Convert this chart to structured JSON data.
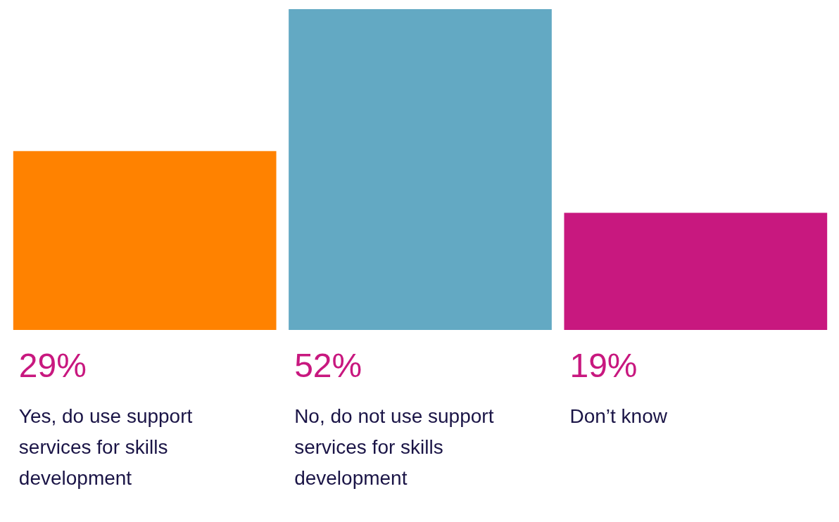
{
  "chart_data": {
    "type": "bar",
    "categories": [
      "Yes, do use support services for skills development",
      "No, do not use support services for skills development",
      "Don’t know"
    ],
    "values": [
      29,
      52,
      19
    ],
    "colors": [
      "#ff8200",
      "#63a9c3",
      "#c8187f"
    ],
    "value_labels": [
      "29%",
      "52%",
      "19%"
    ]
  }
}
